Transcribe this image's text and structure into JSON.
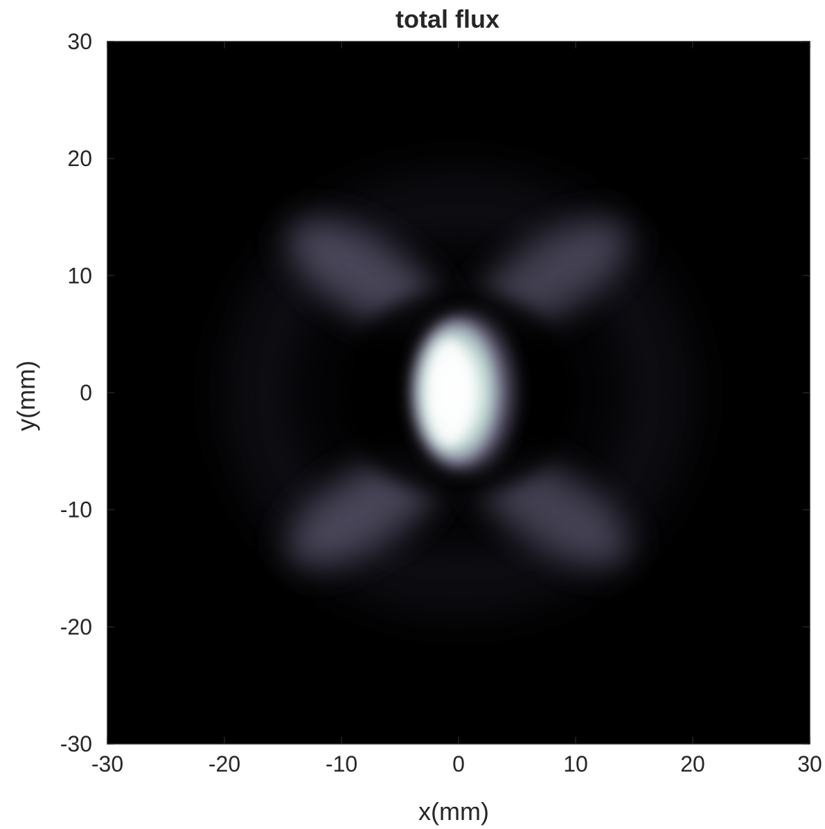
{
  "chart_data": {
    "type": "heatmap",
    "title": "total flux",
    "xlabel": "x(mm)",
    "ylabel": "y(mm)",
    "xlim": [
      -30,
      30
    ],
    "ylim": [
      -30,
      30
    ],
    "x_ticks": [
      -30,
      -20,
      -10,
      0,
      10,
      20,
      30
    ],
    "y_ticks": [
      -30,
      -20,
      -10,
      0,
      10,
      20,
      30
    ],
    "x_tick_labels": [
      "-30",
      "-20",
      "-10",
      "0",
      "10",
      "20",
      "30"
    ],
    "y_tick_labels": [
      "-30",
      "-20",
      "-10",
      "0",
      "10",
      "20",
      "30"
    ],
    "grid": false,
    "colormap": "bone",
    "colors": {
      "low": "#000000",
      "mid": "#55526b",
      "high": "#ffffff"
    },
    "features": {
      "central_peak": {
        "x": [
          -3.6,
          4.4
        ],
        "y": [
          -6.3,
          6.4
        ],
        "center": [
          -0.5,
          0
        ],
        "peak_level": 1.0
      },
      "ring_segments": [
        {
          "region": "upper-left",
          "center": [
            -8,
            10
          ],
          "level": 0.35
        },
        {
          "region": "upper-right",
          "center": [
            8,
            10
          ],
          "level": 0.32
        },
        {
          "region": "lower-left",
          "center": [
            -8,
            -10
          ],
          "level": 0.35
        },
        {
          "region": "lower-right",
          "center": [
            8,
            -10
          ],
          "level": 0.32
        }
      ]
    }
  }
}
